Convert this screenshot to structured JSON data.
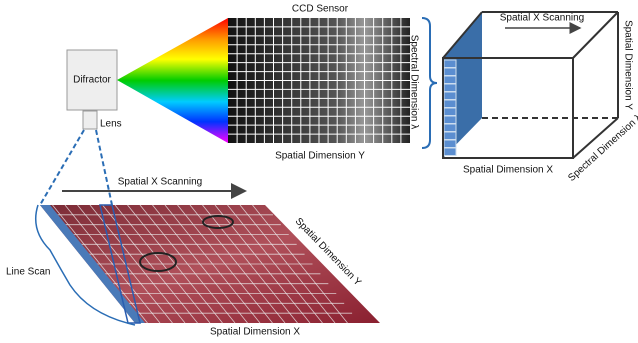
{
  "spectrometer": {
    "diffractor": "Difractor",
    "lens": "Lens"
  },
  "sensor": {
    "title": "CCD Sensor",
    "spectral_axis": "Spectral Dimension λ",
    "spatial_axis": "Spatial Dimension Y"
  },
  "cube": {
    "scan_label": "Spatial X Scanning",
    "y_axis": "Spatial Dimension Y",
    "spectral_axis": "Spectral Dimension λ",
    "x_axis": "Spatial Dimension X"
  },
  "sample": {
    "scan_label": "Spatial X Scanning",
    "y_axis": "Spatial Dimension Y",
    "x_axis": "Spatial Dimension X",
    "line_scan": "Line Scan"
  }
}
